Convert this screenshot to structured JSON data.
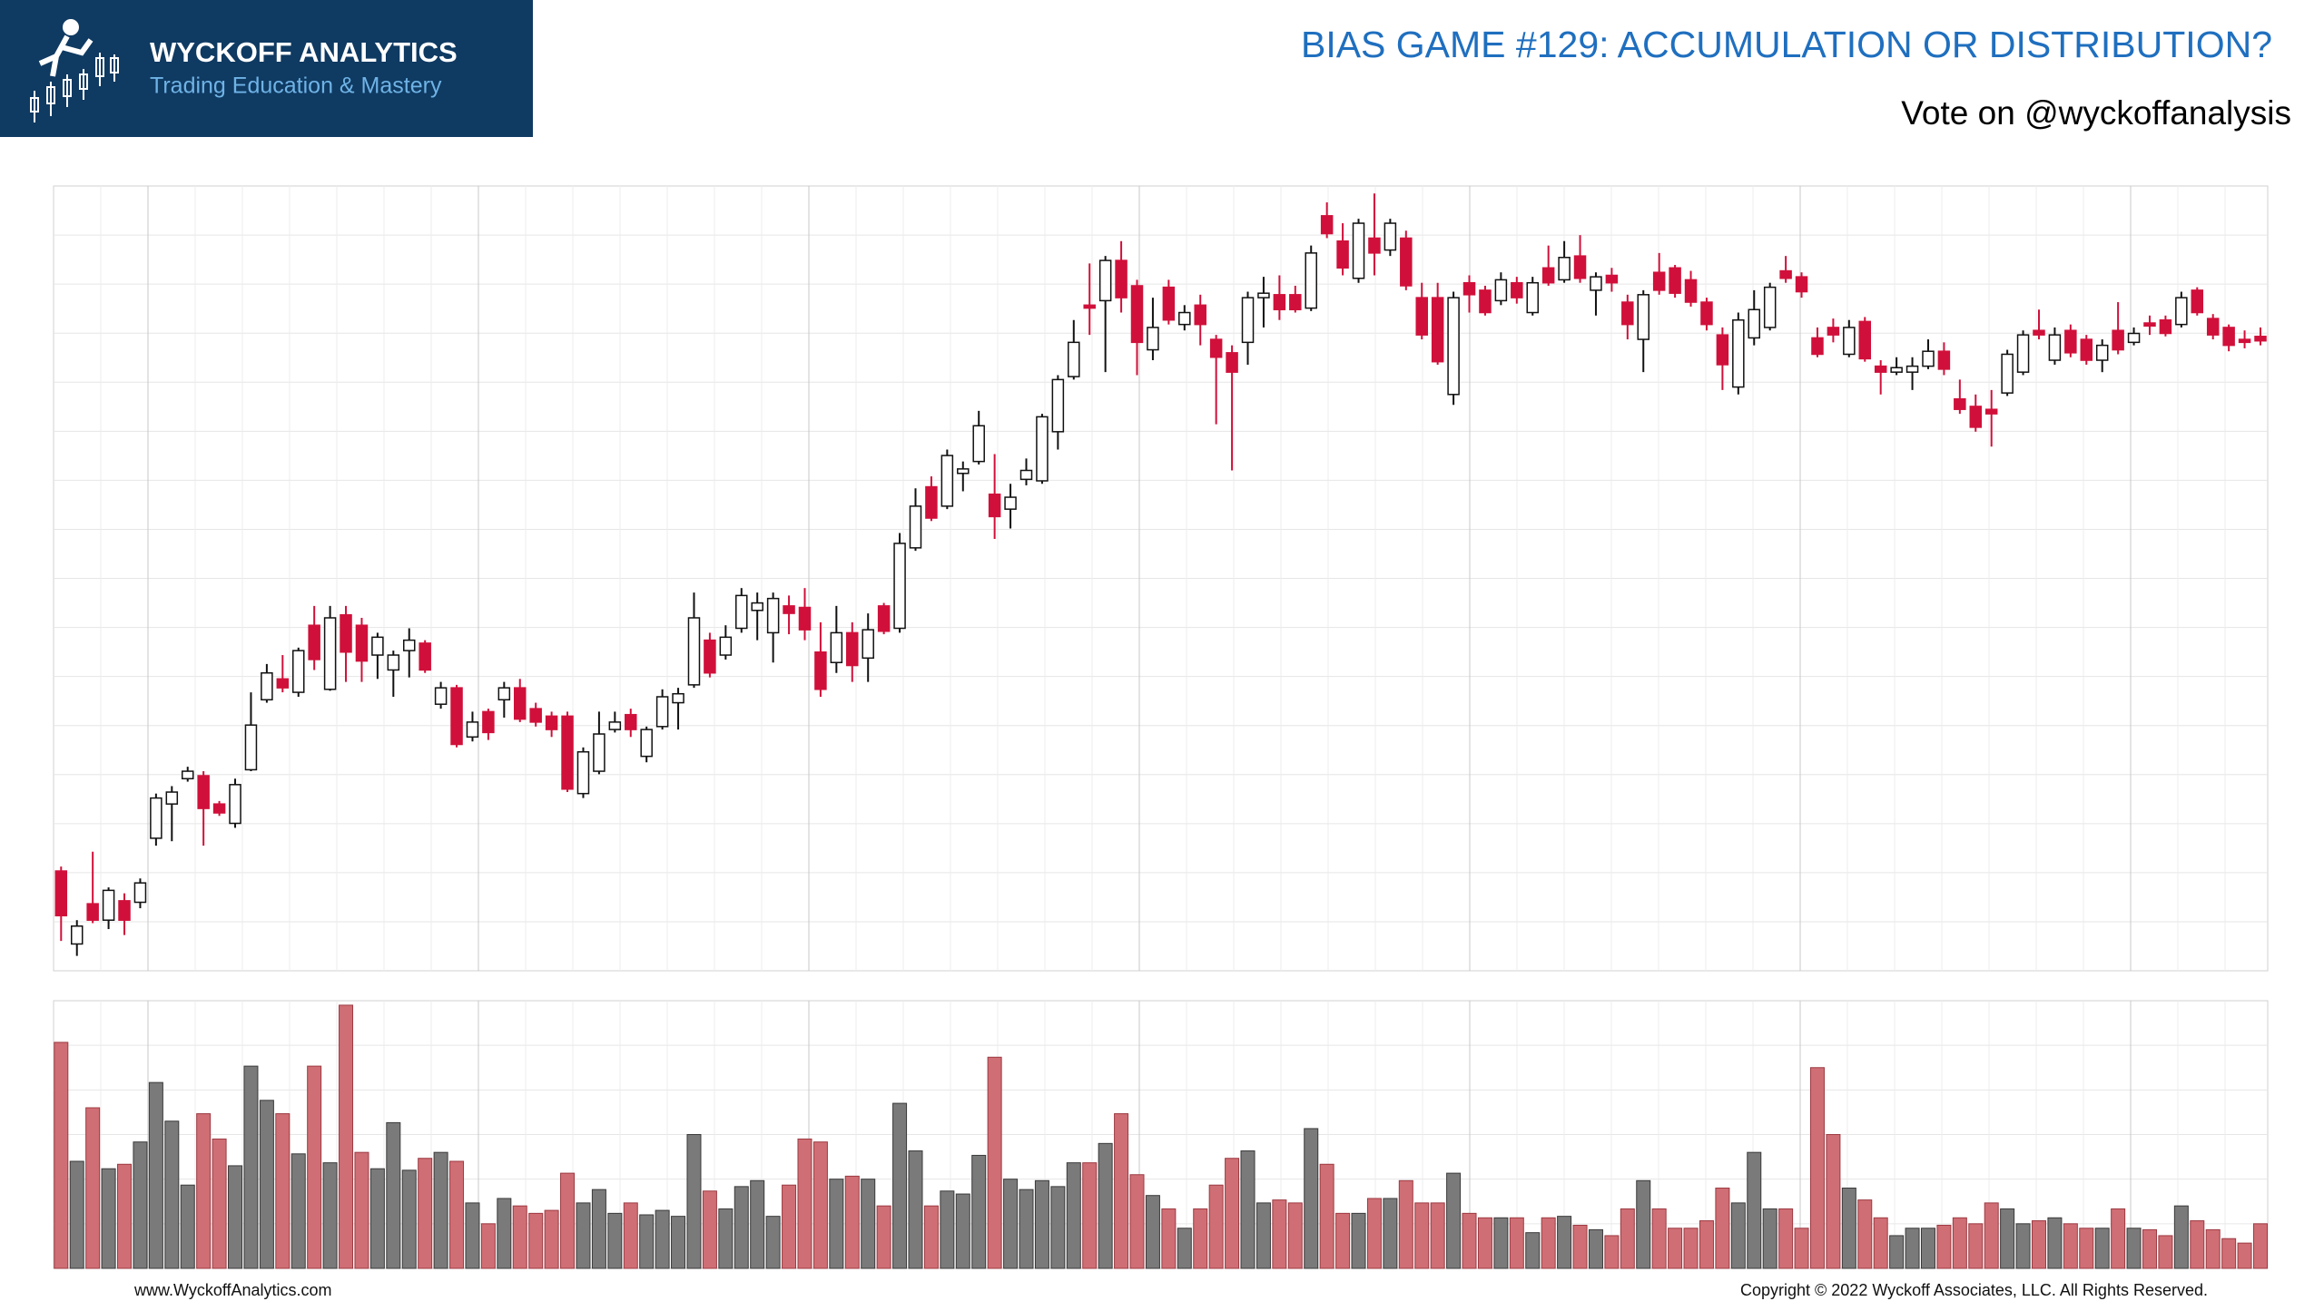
{
  "header": {
    "logo_title": "WYCKOFF ANALYTICS",
    "logo_subtitle": "Trading Education & Mastery",
    "title": "BIAS GAME #129: ACCUMULATION OR DISTRIBUTION?",
    "subtitle": "Vote on @wyckoffanalysis"
  },
  "footer": {
    "left": "www.WyckoffAnalytics.com",
    "right": "Copyright © 2022 Wyckoff Associates, LLC. All Rights Reserved."
  },
  "chart_data": [
    {
      "type": "candlestick",
      "grid": true,
      "ylim": [
        48,
        575
      ],
      "up_color": "#ffffff",
      "down_color": "#d0103a",
      "open": [
        115,
        66,
        93,
        82,
        95,
        94,
        137,
        160,
        177,
        179,
        160,
        147,
        183,
        230,
        244,
        235,
        280,
        237,
        287,
        280,
        260,
        250,
        263,
        268,
        227,
        238,
        205,
        222,
        230,
        238,
        224,
        219,
        219,
        167,
        182,
        210,
        220,
        192,
        212,
        228,
        240,
        270,
        260,
        278,
        290,
        275,
        293,
        292,
        262,
        255,
        275,
        258,
        293,
        278,
        332,
        373,
        360,
        382,
        390,
        368,
        358,
        378,
        377,
        410,
        447,
        495,
        498,
        525,
        508,
        465,
        507,
        482,
        495,
        472,
        463,
        470,
        500,
        502,
        502,
        493,
        555,
        538,
        513,
        540,
        532,
        540,
        500,
        500,
        435,
        510,
        505,
        498,
        510,
        490,
        520,
        512,
        528,
        505,
        515,
        497,
        472,
        517,
        520,
        512,
        497,
        475,
        440,
        473,
        480,
        518,
        514,
        473,
        480,
        462,
        484,
        454,
        450,
        450,
        454,
        464,
        432,
        427,
        425,
        436,
        450,
        478,
        458,
        478,
        472,
        458,
        478,
        470,
        483,
        485,
        482,
        505,
        486,
        480,
        472,
        474
      ],
      "high": [
        118,
        82,
        128,
        104,
        100,
        110,
        167,
        172,
        185,
        182,
        162,
        177,
        235,
        254,
        260,
        265,
        293,
        293,
        293,
        285,
        275,
        263,
        278,
        270,
        242,
        240,
        222,
        224,
        242,
        244,
        228,
        222,
        222,
        198,
        222,
        222,
        224,
        212,
        237,
        238,
        302,
        275,
        280,
        305,
        302,
        302,
        300,
        305,
        282,
        293,
        282,
        288,
        295,
        342,
        372,
        380,
        398,
        390,
        424,
        395,
        375,
        392,
        422,
        448,
        485,
        523,
        528,
        538,
        512,
        500,
        512,
        495,
        502,
        475,
        468,
        504,
        514,
        515,
        508,
        535,
        564,
        550,
        553,
        570,
        553,
        545,
        510,
        510,
        504,
        515,
        508,
        517,
        514,
        514,
        535,
        538,
        542,
        517,
        520,
        502,
        505,
        530,
        522,
        518,
        500,
        480,
        490,
        505,
        510,
        528,
        517,
        480,
        486,
        485,
        487,
        458,
        460,
        460,
        472,
        470,
        445,
        435,
        438,
        465,
        478,
        492,
        480,
        482,
        475,
        472,
        497,
        480,
        488,
        488,
        504,
        507,
        489,
        482,
        478,
        480
      ],
      "low": [
        68,
        58,
        80,
        76,
        72,
        90,
        132,
        135,
        175,
        132,
        152,
        144,
        182,
        228,
        235,
        232,
        250,
        236,
        242,
        242,
        244,
        232,
        245,
        248,
        224,
        198,
        202,
        203,
        218,
        215,
        212,
        205,
        168,
        164,
        180,
        208,
        205,
        188,
        210,
        210,
        238,
        245,
        257,
        275,
        270,
        255,
        274,
        270,
        232,
        248,
        242,
        242,
        274,
        275,
        330,
        350,
        358,
        370,
        388,
        338,
        345,
        374,
        375,
        398,
        445,
        475,
        450,
        490,
        448,
        458,
        482,
        478,
        468,
        415,
        384,
        455,
        480,
        485,
        490,
        491,
        540,
        515,
        510,
        515,
        528,
        505,
        472,
        455,
        428,
        490,
        488,
        495,
        496,
        488,
        508,
        510,
        510,
        488,
        504,
        472,
        450,
        502,
        500,
        494,
        478,
        438,
        435,
        468,
        478,
        510,
        500,
        460,
        470,
        460,
        457,
        435,
        448,
        438,
        452,
        448,
        422,
        410,
        400,
        434,
        448,
        472,
        455,
        460,
        455,
        450,
        462,
        468,
        475,
        474,
        480,
        488,
        472,
        464,
        466,
        468
      ],
      "close": [
        85,
        78,
        82,
        102,
        82,
        107,
        164,
        168,
        182,
        157,
        154,
        173,
        213,
        248,
        238,
        263,
        257,
        285,
        262,
        256,
        272,
        260,
        270,
        250,
        238,
        200,
        215,
        208,
        238,
        217,
        215,
        210,
        170,
        195,
        207,
        215,
        210,
        210,
        232,
        234,
        285,
        248,
        272,
        300,
        295,
        298,
        288,
        277,
        237,
        275,
        253,
        277,
        276,
        335,
        360,
        352,
        394,
        385,
        414,
        353,
        366,
        384,
        420,
        445,
        470,
        493,
        525,
        500,
        470,
        480,
        485,
        490,
        482,
        460,
        450,
        500,
        503,
        492,
        492,
        530,
        543,
        520,
        550,
        530,
        550,
        508,
        475,
        457,
        500,
        502,
        490,
        512,
        500,
        510,
        510,
        527,
        513,
        514,
        510,
        482,
        502,
        505,
        503,
        497,
        482,
        455,
        485,
        492,
        507,
        513,
        504,
        462,
        475,
        480,
        459,
        450,
        453,
        454,
        464,
        452,
        425,
        413,
        422,
        462,
        475,
        475,
        475,
        463,
        458,
        468,
        465,
        476,
        481,
        476,
        500,
        490,
        475,
        468,
        470,
        471
      ]
    },
    {
      "type": "bar",
      "grid": true,
      "ylim": [
        0,
        180
      ],
      "up_color": "#7a7a7a",
      "down_color": "#cf6e74",
      "values": [
        152,
        72,
        108,
        67,
        70,
        85,
        125,
        99,
        56,
        104,
        87,
        69,
        136,
        113,
        104,
        77,
        136,
        71,
        177,
        78,
        67,
        98,
        66,
        74,
        78,
        72,
        44,
        30,
        47,
        42,
        37,
        39,
        64,
        44,
        53,
        37,
        44,
        36,
        39,
        35,
        90,
        52,
        40,
        55,
        59,
        35,
        56,
        87,
        85,
        60,
        62,
        60,
        42,
        111,
        79,
        42,
        52,
        50,
        76,
        142,
        60,
        53,
        59,
        55,
        71,
        71,
        84,
        104,
        63,
        49,
        40,
        27,
        40,
        56,
        74,
        79,
        44,
        46,
        44,
        94,
        70,
        37,
        37,
        47,
        47,
        59,
        44,
        44,
        64,
        37,
        34,
        34,
        34,
        24,
        34,
        35,
        29,
        26,
        22,
        40,
        59,
        40,
        27,
        27,
        32,
        54,
        44,
        78,
        40,
        40,
        27,
        135,
        90,
        54,
        46,
        34,
        22,
        27,
        27,
        29,
        34,
        30,
        44,
        40,
        30,
        32,
        34,
        30,
        27,
        27,
        40,
        27,
        26,
        22,
        42,
        32,
        26,
        20,
        17,
        30
      ]
    }
  ]
}
